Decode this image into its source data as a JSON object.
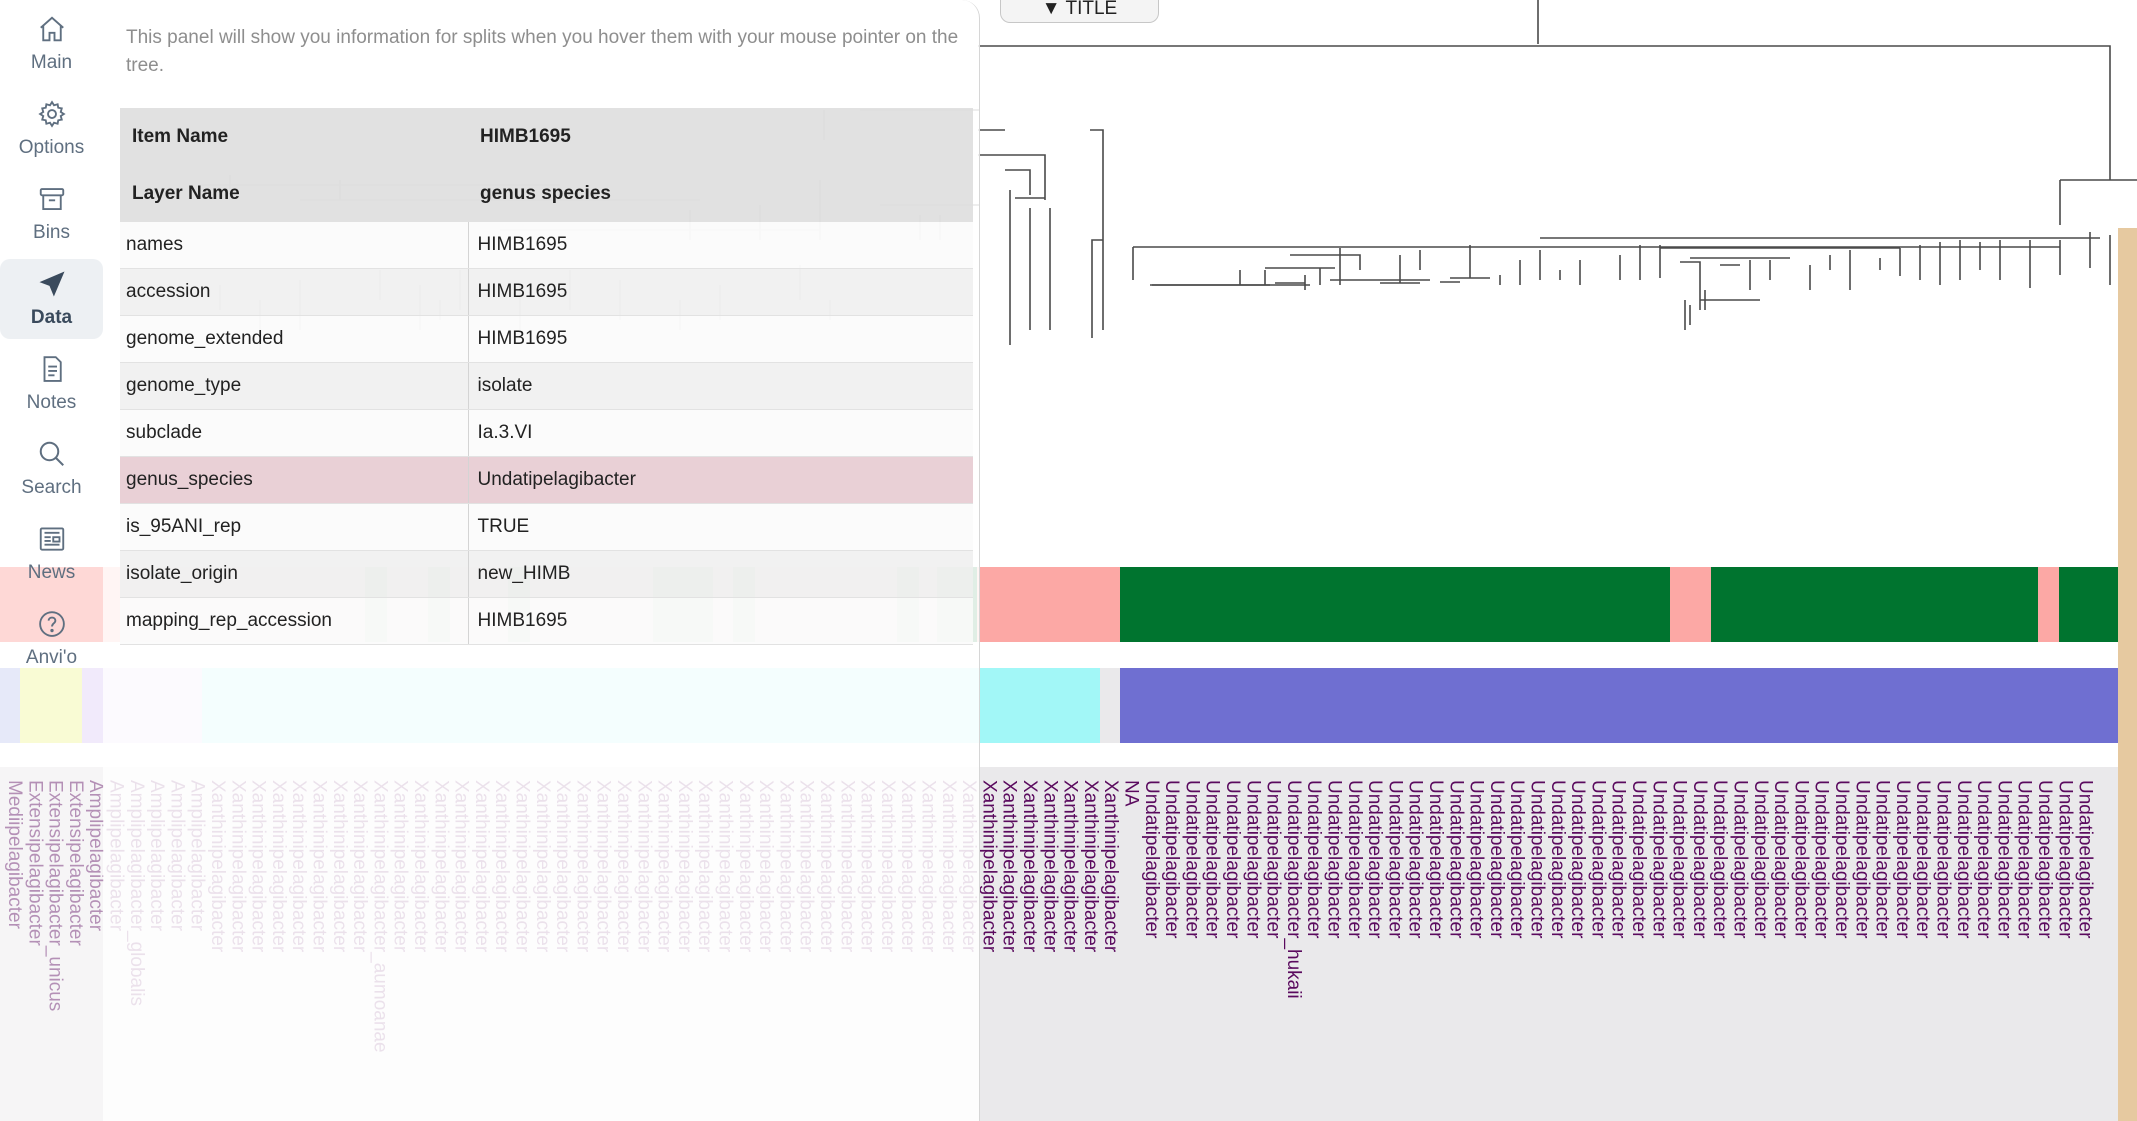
{
  "sidebar": {
    "items": [
      {
        "label": "Main",
        "icon": "home-icon"
      },
      {
        "label": "Options",
        "icon": "gear-icon"
      },
      {
        "label": "Bins",
        "icon": "archive-icon"
      },
      {
        "label": "Data",
        "icon": "send-icon",
        "active": true
      },
      {
        "label": "Notes",
        "icon": "document-icon"
      },
      {
        "label": "Search",
        "icon": "search-icon"
      },
      {
        "label": "News",
        "icon": "newspaper-icon"
      },
      {
        "label": "Anvi'o",
        "icon": "help-icon"
      }
    ]
  },
  "title_toggle": "▼ TITLE",
  "info_panel": {
    "description": "This panel will show you information for splits when you hover them with your mouse pointer on the tree.",
    "header": {
      "item_name_label": "Item Name",
      "item_name_value": "HIMB1695",
      "layer_name_label": "Layer Name",
      "layer_name_value": "genus species"
    },
    "rows": [
      {
        "key": "names",
        "value": "HIMB1695"
      },
      {
        "key": "accession",
        "value": "HIMB1695"
      },
      {
        "key": "genome_extended",
        "value": "HIMB1695"
      },
      {
        "key": "genome_type",
        "value": "isolate"
      },
      {
        "key": "subclade",
        "value": "Ia.3.VI"
      },
      {
        "key": "genus_species",
        "value": "Undatipelagibacter",
        "highlighted": true
      },
      {
        "key": "is_95ANI_rep",
        "value": "TRUE"
      },
      {
        "key": "isolate_origin",
        "value": "new_HIMB"
      },
      {
        "key": "mapping_rep_accession",
        "value": "HIMB1695"
      }
    ]
  },
  "colors": {
    "layer1_salmon": "#fca8a5",
    "layer1_green": "#00742f",
    "layer2_cyan": "#a2f7f7",
    "layer2_purple": "#6f6fd1",
    "tip_label": "#5a0a5e",
    "selection_tan": "#e6c9a0"
  },
  "tree_labels": [
    "Mediipelagibacter",
    "Extensipelagibacter",
    "Extensipelagibacter_unicus",
    "Extensipelagibacter",
    "Amplipelagibacter",
    "Amplipelagibacter",
    "Amplipelagibacter_globalis",
    "Amplipelagibacter",
    "Amplipelagibacter",
    "Amplipelagibacter",
    "Xanthinipelagibacter",
    "Xanthinipelagibacter",
    "Xanthinipelagibacter",
    "Xanthinipelagibacter",
    "Xanthinipelagibacter",
    "Xanthinipelagibacter",
    "Xanthinipelagibacter",
    "Xanthinipelagibacter",
    "Xanthinipelagibacter_aumoanae",
    "Xanthinipelagibacter",
    "Xanthinipelagibacter",
    "Xanthinipelagibacter",
    "Xanthinipelagibacter",
    "Xanthinipelagibacter",
    "Xanthinipelagibacter",
    "Xanthinipelagibacter",
    "Xanthinipelagibacter",
    "Xanthinipelagibacter",
    "Xanthinipelagibacter",
    "Xanthinipelagibacter",
    "Xanthinipelagibacter",
    "Xanthinipelagibacter",
    "Xanthinipelagibacter",
    "Xanthinipelagibacter",
    "Xanthinipelagibacter",
    "Xanthinipelagibacter",
    "Xanthinipelagibacter",
    "Xanthinipelagibacter",
    "Xanthinipelagibacter",
    "Xanthinipelagibacter",
    "Xanthinipelagibacter",
    "Xanthinipelagibacter",
    "Xanthinipelagibacter",
    "Xanthinipelagibacter",
    "Xanthinipelagibacter",
    "Xanthinipelagibacter",
    "Xanthinipelagibacter",
    "Xanthinipelagibacter",
    "Xanthinipelagibacter",
    "Xanthinipelagibacter",
    "Xanthinipelagibacter",
    "Xanthinipelagibacter",
    "Xanthinipelagibacter",
    "Xanthinipelagibacter",
    "Xanthinipelagibacter",
    "NA",
    "Undatipelagibacter",
    "Undatipelagibacter",
    "Undatipelagibacter",
    "Undatipelagibacter",
    "Undatipelagibacter",
    "Undatipelagibacter",
    "Undatipelagibacter",
    "Undatipelagibacter_hukaii",
    "Undatipelagibacter",
    "Undatipelagibacter",
    "Undatipelagibacter",
    "Undatipelagibacter",
    "Undatipelagibacter",
    "Undatipelagibacter",
    "Undatipelagibacter",
    "Undatipelagibacter",
    "Undatipelagibacter",
    "Undatipelagibacter",
    "Undatipelagibacter",
    "Undatipelagibacter",
    "Undatipelagibacter",
    "Undatipelagibacter",
    "Undatipelagibacter",
    "Undatipelagibacter",
    "Undatipelagibacter",
    "Undatipelagibacter",
    "Undatipelagibacter",
    "Undatipelagibacter",
    "Undatipelagibacter",
    "Undatipelagibacter",
    "Undatipelagibacter",
    "Undatipelagibacter",
    "Undatipelagibacter",
    "Undatipelagibacter",
    "Undatipelagibacter",
    "Undatipelagibacter",
    "Undatipelagibacter",
    "Undatipelagibacter",
    "Undatipelagibacter",
    "Undatipelagibacter",
    "Undatipelagibacter",
    "Undatipelagibacter",
    "Undatipelagibacter",
    "Undatipelagibacter",
    "Undatipelagibacter",
    "Undatipelagibacter",
    "Undatipelagibacter"
  ]
}
